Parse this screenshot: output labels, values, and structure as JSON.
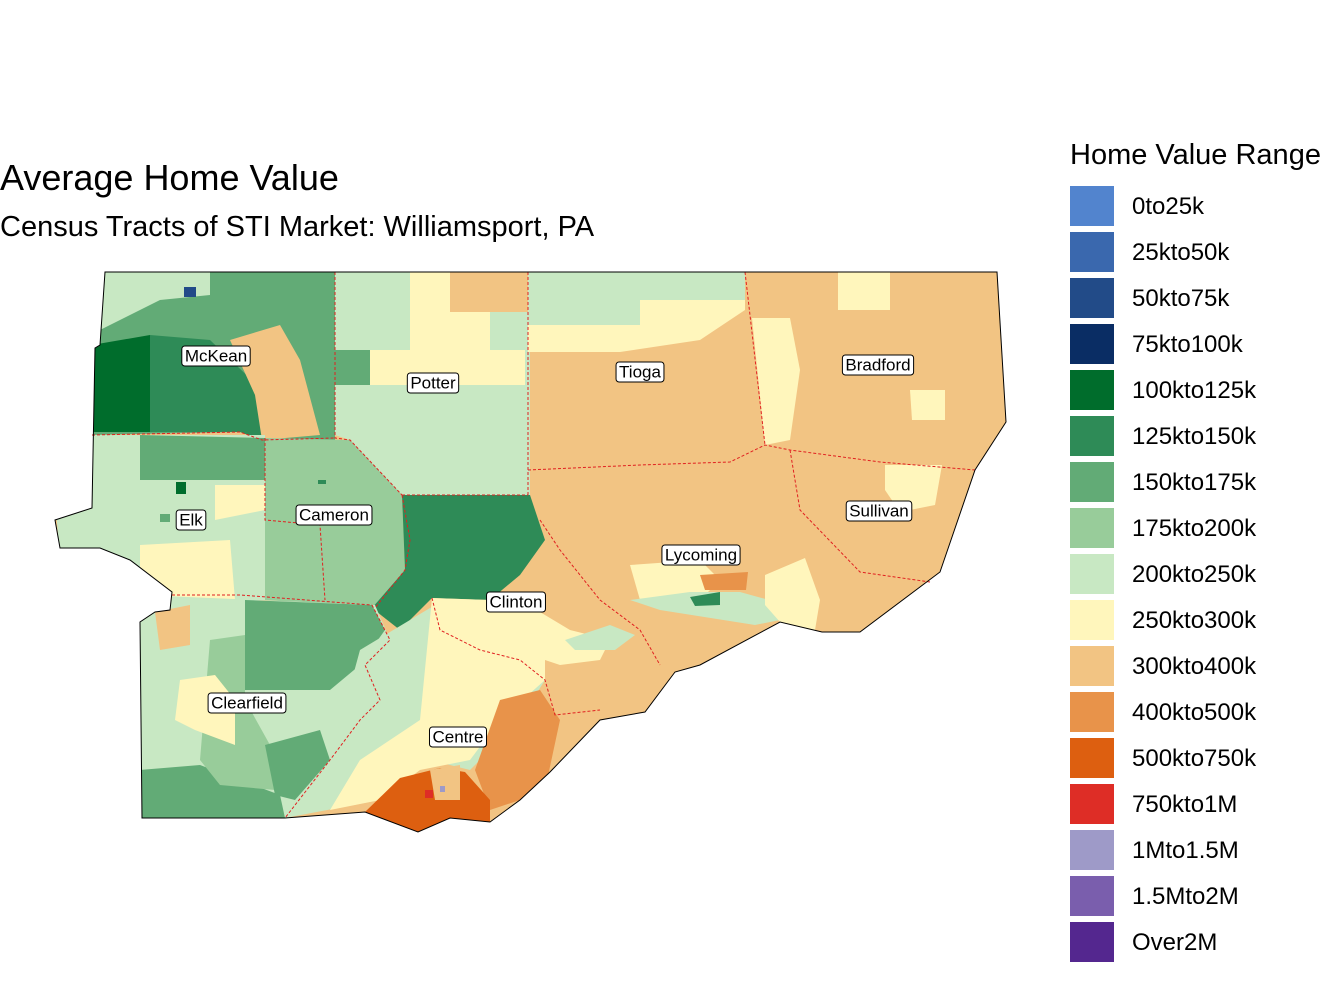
{
  "title": "Average Home Value",
  "subtitle": "Census Tracts of STI Market: Williamsport, PA",
  "legend": {
    "title": "Home Value Range",
    "items": [
      {
        "label": "0to25k",
        "color": "#5284CE"
      },
      {
        "label": "25kto50k",
        "color": "#3A68AE"
      },
      {
        "label": "50kto75k",
        "color": "#224B88"
      },
      {
        "label": "75kto100k",
        "color": "#0A2D64"
      },
      {
        "label": "100kto125k",
        "color": "#006D2C"
      },
      {
        "label": "125kto150k",
        "color": "#2E8B57"
      },
      {
        "label": "150kto175k",
        "color": "#62AB76"
      },
      {
        "label": "175kto200k",
        "color": "#98CC9A"
      },
      {
        "label": "200kto250k",
        "color": "#C8E8C3"
      },
      {
        "label": "250kto300k",
        "color": "#FFF6BC"
      },
      {
        "label": "300kto400k",
        "color": "#F2C483"
      },
      {
        "label": "400kto500k",
        "color": "#E8934A"
      },
      {
        "label": "500kto750k",
        "color": "#DD5F10"
      },
      {
        "label": "750kto1M",
        "color": "#DE2D26"
      },
      {
        "label": "1Mto1.5M",
        "color": "#9E9AC8"
      },
      {
        "label": "1.5Mto2M",
        "color": "#7A5EAD"
      },
      {
        "label": "Over2M",
        "color": "#54278F"
      }
    ]
  },
  "counties": [
    {
      "name": "McKean",
      "range": "150kto175k"
    },
    {
      "name": "Potter",
      "range": "200kto250k"
    },
    {
      "name": "Tioga",
      "range": "300kto400k"
    },
    {
      "name": "Bradford",
      "range": "300kto400k"
    },
    {
      "name": "Elk",
      "range": "200kto250k"
    },
    {
      "name": "Cameron",
      "range": "175kto200k"
    },
    {
      "name": "Sullivan",
      "range": "300kto400k"
    },
    {
      "name": "Lycoming",
      "range": "300kto400k"
    },
    {
      "name": "Clinton",
      "range": "300kto400k"
    },
    {
      "name": "Clearfield",
      "range": "200kto250k"
    },
    {
      "name": "Centre",
      "range": "400kto500k"
    }
  ],
  "county_boundary_color": "#E02020"
}
